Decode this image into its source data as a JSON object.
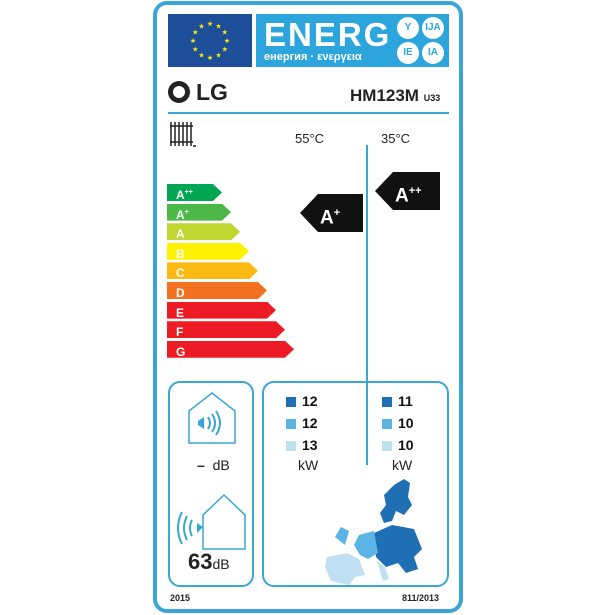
{
  "header": {
    "energ": "ENERG",
    "subtitle": "енергия · ενεργεια",
    "languages": [
      "Y",
      "IJA",
      "IE",
      "IA"
    ],
    "eu_flag": "eu-flag-icon"
  },
  "brand": {
    "logo": "LG",
    "model": "HM123M",
    "model_suffix": "U33"
  },
  "columns": {
    "temp_high": "55°C",
    "temp_low": "35°C"
  },
  "scale": [
    {
      "label": "A",
      "sup": "++",
      "color": "#00a651"
    },
    {
      "label": "A",
      "sup": "+",
      "color": "#4cb848"
    },
    {
      "label": "A",
      "sup": "",
      "color": "#bfd730"
    },
    {
      "label": "B",
      "sup": "",
      "color": "#fff200"
    },
    {
      "label": "C",
      "sup": "",
      "color": "#fdb913"
    },
    {
      "label": "D",
      "sup": "",
      "color": "#f37021"
    },
    {
      "label": "E",
      "sup": "",
      "color": "#ed1c24"
    },
    {
      "label": "F",
      "sup": "",
      "color": "#ed1c24"
    },
    {
      "label": "G",
      "sup": "",
      "color": "#ed1c24"
    }
  ],
  "rating_55": {
    "label": "A",
    "sup": "+"
  },
  "rating_35": {
    "label": "A",
    "sup": "++"
  },
  "noise": {
    "indoor": "–",
    "indoor_unit": "dB",
    "outdoor": "63",
    "outdoor_unit": "dB"
  },
  "power": {
    "colors": [
      "#1f6fb5",
      "#5bb4e5",
      "#bfe0f2"
    ],
    "col55": [
      "12",
      "12",
      "13"
    ],
    "col35": [
      "11",
      "10",
      "10"
    ],
    "unit": "kW"
  },
  "footer": {
    "year": "2015",
    "regulation": "811/2013"
  }
}
